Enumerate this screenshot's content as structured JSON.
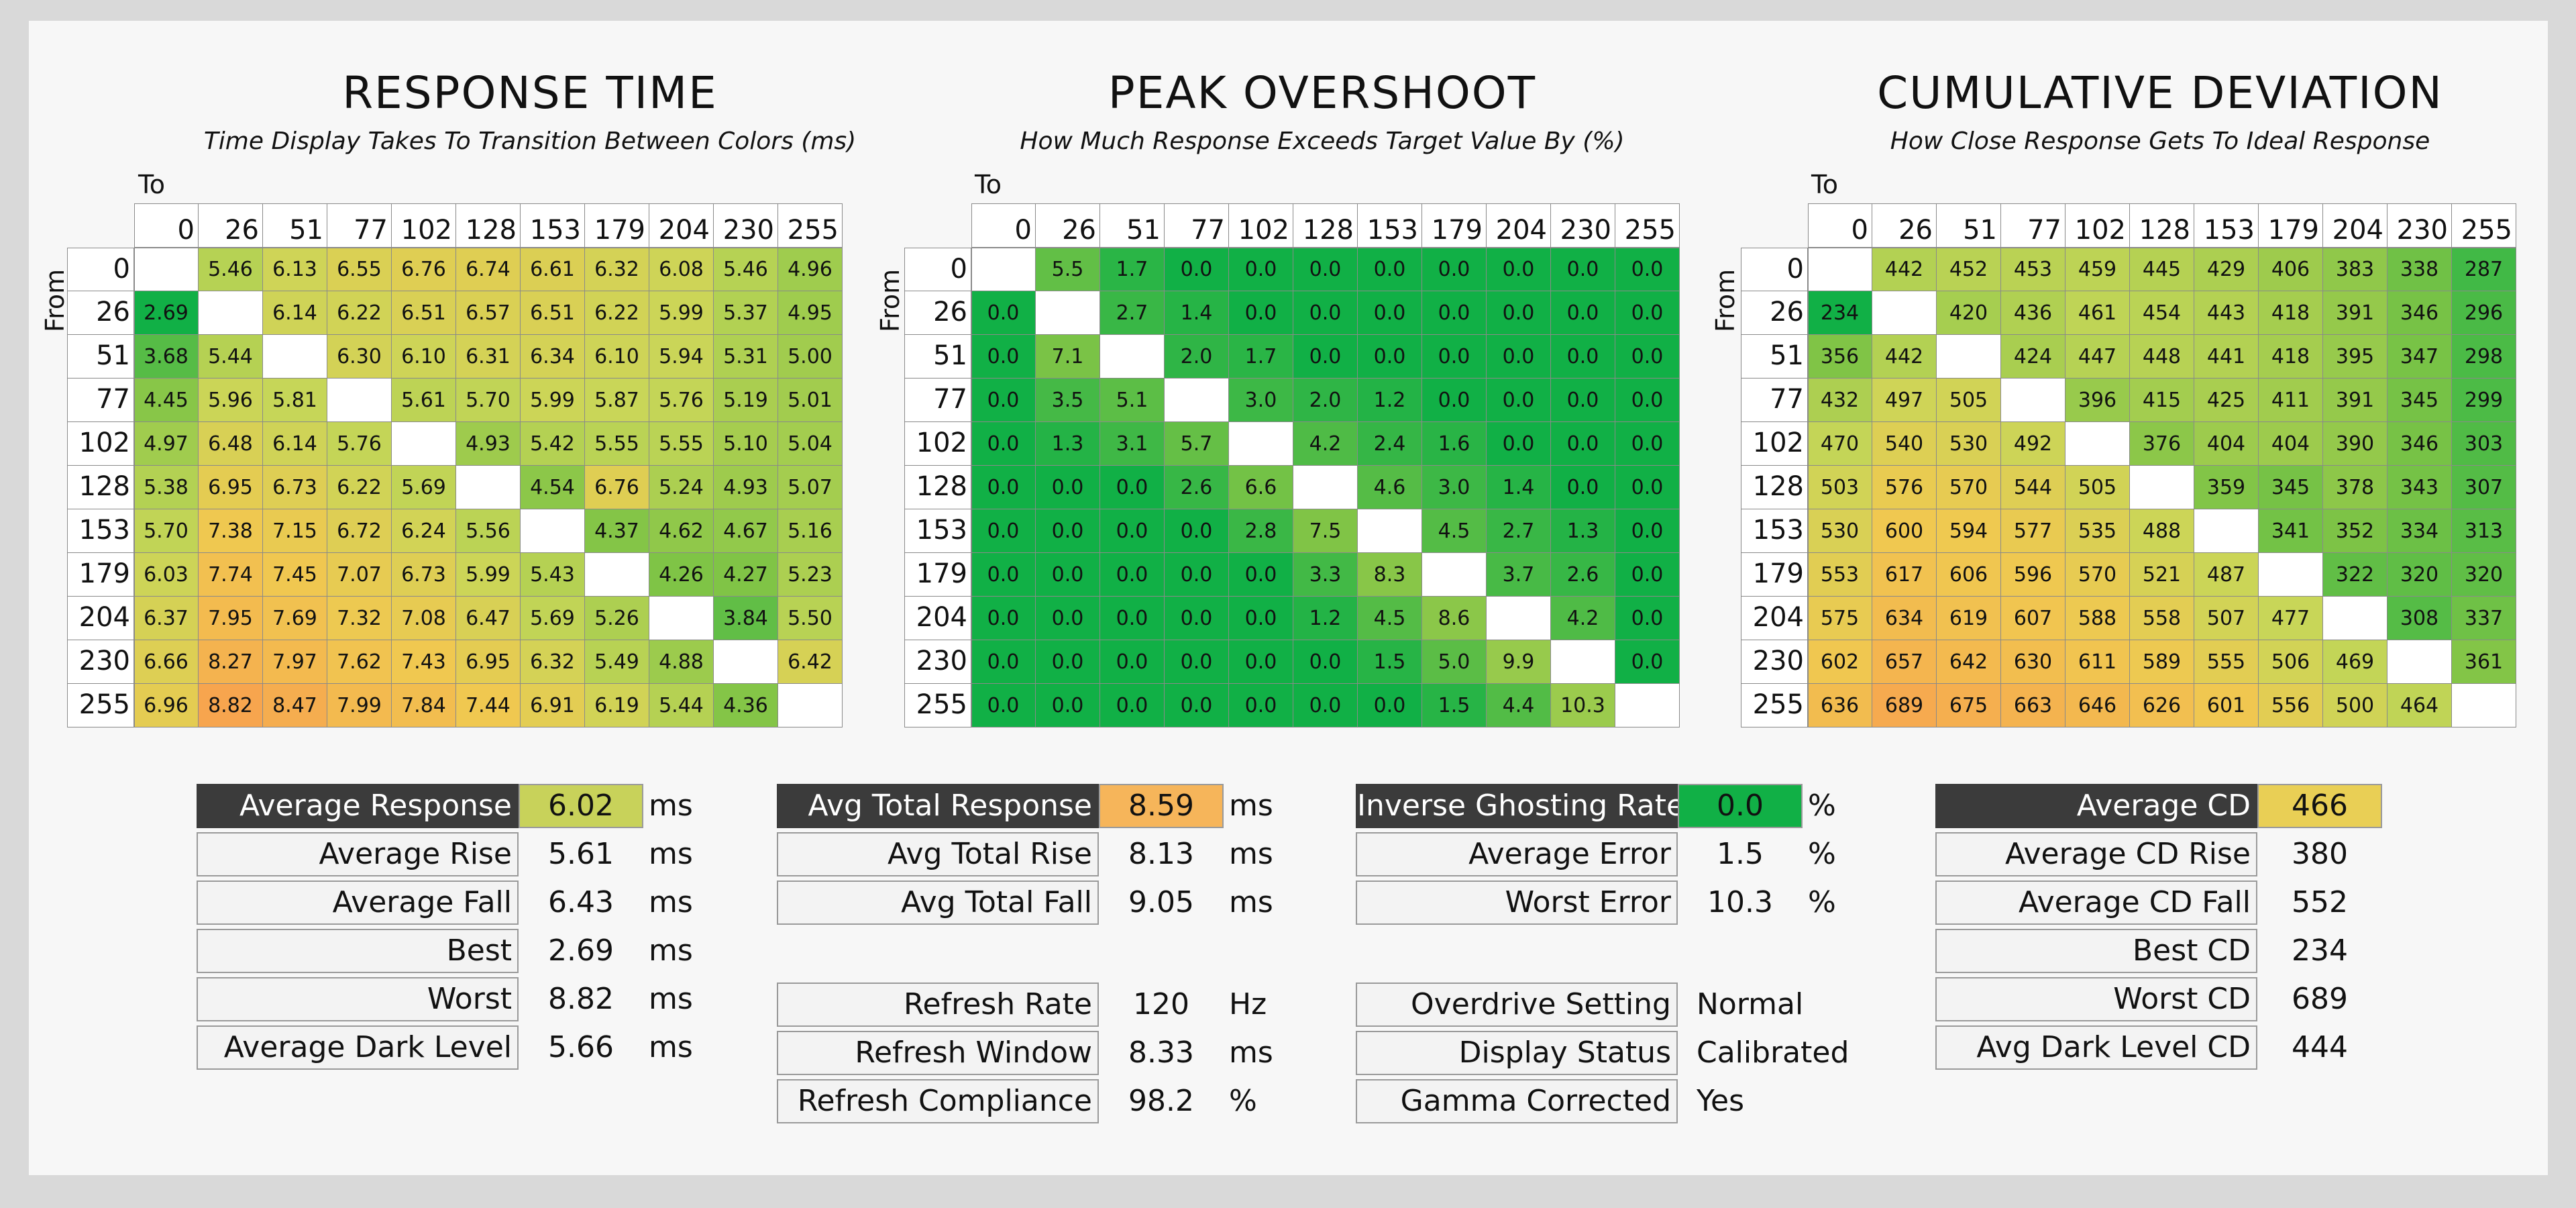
{
  "chart_data": [
    {
      "type": "heatmap",
      "title": "RESPONSE TIME",
      "subtitle": "Time Display Takes To Transition Between Colors (ms)",
      "xlabel": "To",
      "ylabel": "From",
      "levels": [
        0,
        26,
        51,
        77,
        102,
        128,
        153,
        179,
        204,
        230,
        255
      ],
      "values": [
        [
          null,
          "5.46",
          "6.13",
          "6.55",
          "6.76",
          "6.74",
          "6.61",
          "6.32",
          "6.08",
          "5.46",
          "4.96"
        ],
        [
          "2.69",
          null,
          "6.14",
          "6.22",
          "6.51",
          "6.57",
          "6.51",
          "6.22",
          "5.99",
          "5.37",
          "4.95"
        ],
        [
          "3.68",
          "5.44",
          null,
          "6.30",
          "6.10",
          "6.31",
          "6.34",
          "6.10",
          "5.94",
          "5.31",
          "5.00"
        ],
        [
          "4.45",
          "5.96",
          "5.81",
          null,
          "5.61",
          "5.70",
          "5.99",
          "5.87",
          "5.76",
          "5.19",
          "5.01"
        ],
        [
          "4.97",
          "6.48",
          "6.14",
          "5.76",
          null,
          "4.93",
          "5.42",
          "5.55",
          "5.55",
          "5.10",
          "5.04"
        ],
        [
          "5.38",
          "6.95",
          "6.73",
          "6.22",
          "5.69",
          null,
          "4.54",
          "6.76",
          "5.24",
          "4.93",
          "5.07"
        ],
        [
          "5.70",
          "7.38",
          "7.15",
          "6.72",
          "6.24",
          "5.56",
          null,
          "4.37",
          "4.62",
          "4.67",
          "5.16"
        ],
        [
          "6.03",
          "7.74",
          "7.45",
          "7.07",
          "6.73",
          "5.99",
          "5.43",
          null,
          "4.26",
          "4.27",
          "5.23"
        ],
        [
          "6.37",
          "7.95",
          "7.69",
          "7.32",
          "7.08",
          "6.47",
          "5.69",
          "5.26",
          null,
          "3.84",
          "5.50"
        ],
        [
          "6.66",
          "8.27",
          "7.97",
          "7.62",
          "7.43",
          "6.95",
          "6.32",
          "5.49",
          "4.88",
          null,
          "6.42"
        ],
        [
          "6.96",
          "8.82",
          "8.47",
          "7.99",
          "7.84",
          "7.44",
          "6.91",
          "6.19",
          "5.44",
          "4.36",
          null
        ]
      ],
      "color_min": 2.7,
      "color_max": 9.0
    },
    {
      "type": "heatmap",
      "title": "PEAK OVERSHOOT",
      "subtitle": "How Much Response Exceeds Target Value By (%)",
      "xlabel": "To",
      "ylabel": "From",
      "levels": [
        0,
        26,
        51,
        77,
        102,
        128,
        153,
        179,
        204,
        230,
        255
      ],
      "values": [
        [
          null,
          "5.5",
          "1.7",
          "0.0",
          "0.0",
          "0.0",
          "0.0",
          "0.0",
          "0.0",
          "0.0",
          "0.0"
        ],
        [
          "0.0",
          null,
          "2.7",
          "1.4",
          "0.0",
          "0.0",
          "0.0",
          "0.0",
          "0.0",
          "0.0",
          "0.0"
        ],
        [
          "0.0",
          "7.1",
          null,
          "2.0",
          "1.7",
          "0.0",
          "0.0",
          "0.0",
          "0.0",
          "0.0",
          "0.0"
        ],
        [
          "0.0",
          "3.5",
          "5.1",
          null,
          "3.0",
          "2.0",
          "1.2",
          "0.0",
          "0.0",
          "0.0",
          "0.0"
        ],
        [
          "0.0",
          "1.3",
          "3.1",
          "5.7",
          null,
          "4.2",
          "2.4",
          "1.6",
          "0.0",
          "0.0",
          "0.0"
        ],
        [
          "0.0",
          "0.0",
          "0.0",
          "2.6",
          "6.6",
          null,
          "4.6",
          "3.0",
          "1.4",
          "0.0",
          "0.0"
        ],
        [
          "0.0",
          "0.0",
          "0.0",
          "0.0",
          "2.8",
          "7.5",
          null,
          "4.5",
          "2.7",
          "1.3",
          "0.0"
        ],
        [
          "0.0",
          "0.0",
          "0.0",
          "0.0",
          "0.0",
          "3.3",
          "8.3",
          null,
          "3.7",
          "2.6",
          "0.0"
        ],
        [
          "0.0",
          "0.0",
          "0.0",
          "0.0",
          "0.0",
          "1.2",
          "4.5",
          "8.6",
          null,
          "4.2",
          "0.0"
        ],
        [
          "0.0",
          "0.0",
          "0.0",
          "0.0",
          "0.0",
          "0.0",
          "1.5",
          "5.0",
          "9.9",
          null,
          "0.0"
        ],
        [
          "0.0",
          "0.0",
          "0.0",
          "0.0",
          "0.0",
          "0.0",
          "0.0",
          "1.5",
          "4.4",
          "10.3",
          null
        ]
      ],
      "color_min": 0,
      "color_max": 30
    },
    {
      "type": "heatmap",
      "title": "CUMULATIVE DEVIATION",
      "subtitle": "How Close Response Gets To Ideal Response",
      "xlabel": "To",
      "ylabel": "From",
      "levels": [
        0,
        26,
        51,
        77,
        102,
        128,
        153,
        179,
        204,
        230,
        255
      ],
      "values": [
        [
          null,
          "442",
          "452",
          "453",
          "459",
          "445",
          "429",
          "406",
          "383",
          "338",
          "287"
        ],
        [
          "234",
          null,
          "420",
          "436",
          "461",
          "454",
          "443",
          "418",
          "391",
          "346",
          "296"
        ],
        [
          "356",
          "442",
          null,
          "424",
          "447",
          "448",
          "441",
          "418",
          "395",
          "347",
          "298"
        ],
        [
          "432",
          "497",
          "505",
          null,
          "396",
          "415",
          "425",
          "411",
          "391",
          "345",
          "299"
        ],
        [
          "470",
          "540",
          "530",
          "492",
          null,
          "376",
          "404",
          "404",
          "390",
          "346",
          "303"
        ],
        [
          "503",
          "576",
          "570",
          "544",
          "505",
          null,
          "359",
          "345",
          "378",
          "343",
          "307"
        ],
        [
          "530",
          "600",
          "594",
          "577",
          "535",
          "488",
          null,
          "341",
          "352",
          "334",
          "313"
        ],
        [
          "553",
          "617",
          "606",
          "596",
          "570",
          "521",
          "487",
          null,
          "322",
          "320",
          "320"
        ],
        [
          "575",
          "634",
          "619",
          "607",
          "588",
          "558",
          "507",
          "477",
          null,
          "308",
          "337"
        ],
        [
          "602",
          "657",
          "642",
          "630",
          "611",
          "589",
          "555",
          "506",
          "469",
          null,
          "361"
        ],
        [
          "636",
          "689",
          "675",
          "663",
          "646",
          "626",
          "601",
          "556",
          "500",
          "464",
          null
        ]
      ],
      "color_min": 234,
      "color_max": 720
    }
  ],
  "stats": {
    "response": [
      {
        "label": "Average Response",
        "value": "6.02",
        "unit": "ms",
        "highlight": true,
        "color": "#c8d25a"
      },
      {
        "label": "Average Rise",
        "value": "5.61",
        "unit": "ms"
      },
      {
        "label": "Average Fall",
        "value": "6.43",
        "unit": "ms"
      },
      {
        "label": "Best",
        "value": "2.69",
        "unit": "ms"
      },
      {
        "label": "Worst",
        "value": "8.82",
        "unit": "ms"
      },
      {
        "label": "Average Dark Level",
        "value": "5.66",
        "unit": "ms"
      }
    ],
    "total": [
      {
        "label": "Avg Total Response",
        "value": "8.59",
        "unit": "ms",
        "highlight": true,
        "color": "#f6b55a"
      },
      {
        "label": "Avg Total Rise",
        "value": "8.13",
        "unit": "ms"
      },
      {
        "label": "Avg Total Fall",
        "value": "9.05",
        "unit": "ms"
      }
    ],
    "refresh": [
      {
        "label": "Refresh Rate",
        "value": "120",
        "unit": "Hz"
      },
      {
        "label": "Refresh Window",
        "value": "8.33",
        "unit": "ms"
      },
      {
        "label": "Refresh Compliance",
        "value": "98.2",
        "unit": "%"
      }
    ],
    "overshoot": [
      {
        "label": "Inverse Ghosting Rate",
        "value": "0.0",
        "unit": "%",
        "highlight": true,
        "color": "#11b046"
      },
      {
        "label": "Average Error",
        "value": "1.5",
        "unit": "%"
      },
      {
        "label": "Worst Error",
        "value": "10.3",
        "unit": "%"
      }
    ],
    "settings": [
      {
        "label": "Overdrive Setting",
        "value": "Normal",
        "unit": ""
      },
      {
        "label": "Display Status",
        "value": "Calibrated",
        "unit": ""
      },
      {
        "label": "Gamma Corrected",
        "value": "Yes",
        "unit": ""
      }
    ],
    "cd": [
      {
        "label": "Average CD",
        "value": "466",
        "unit": "",
        "highlight": true,
        "color": "#e9cf55"
      },
      {
        "label": "Average CD Rise",
        "value": "380",
        "unit": ""
      },
      {
        "label": "Average CD Fall",
        "value": "552",
        "unit": ""
      },
      {
        "label": "Best CD",
        "value": "234",
        "unit": ""
      },
      {
        "label": "Worst CD",
        "value": "689",
        "unit": ""
      },
      {
        "label": "Avg Dark Level CD",
        "value": "444",
        "unit": ""
      }
    ]
  }
}
